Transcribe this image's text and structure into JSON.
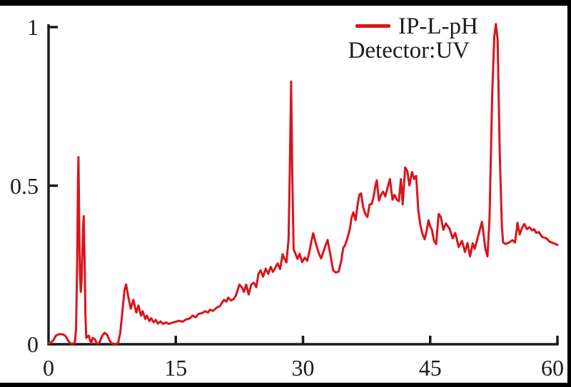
{
  "chart_data": {
    "type": "line",
    "title": "",
    "xlabel": "",
    "ylabel": "",
    "xlim": [
      0,
      60
    ],
    "ylim": [
      0,
      1
    ],
    "x_ticks": [
      0,
      15,
      30,
      45,
      60
    ],
    "y_ticks": [
      0,
      0.5,
      1
    ],
    "grid": false,
    "legend_position": "top-right-inside",
    "annotation": "Detector:UV",
    "axis_color": "#1a1a1a",
    "text_color": "#1c1c1c",
    "background": "#ffffff",
    "frame_color": "#000000",
    "series": [
      {
        "name": "IP-L-pH",
        "color": "#da141b",
        "points": [
          [
            0,
            0.003
          ],
          [
            0.3,
            0.005
          ],
          [
            0.6,
            0.014
          ],
          [
            0.9,
            0.028
          ],
          [
            1.3,
            0.032
          ],
          [
            1.7,
            0.031
          ],
          [
            2.0,
            0.026
          ],
          [
            2.3,
            0.012
          ],
          [
            2.55,
            0.003
          ],
          [
            2.85,
            0.002
          ],
          [
            3.1,
            0.004
          ],
          [
            3.25,
            0.05
          ],
          [
            3.38,
            0.27
          ],
          [
            3.47,
            0.5
          ],
          [
            3.53,
            0.59
          ],
          [
            3.6,
            0.42
          ],
          [
            3.7,
            0.22
          ],
          [
            3.8,
            0.165
          ],
          [
            3.9,
            0.2
          ],
          [
            4.0,
            0.3
          ],
          [
            4.08,
            0.37
          ],
          [
            4.15,
            0.404
          ],
          [
            4.25,
            0.27
          ],
          [
            4.35,
            0.09
          ],
          [
            4.45,
            0.02
          ],
          [
            4.6,
            0.025
          ],
          [
            4.75,
            0.027
          ],
          [
            4.9,
            0.012
          ],
          [
            5.05,
            0.004
          ],
          [
            5.2,
            0.02
          ],
          [
            5.45,
            0.016
          ],
          [
            5.7,
            0.002
          ],
          [
            6.0,
            0.004
          ],
          [
            6.3,
            0.026
          ],
          [
            6.6,
            0.036
          ],
          [
            6.9,
            0.03
          ],
          [
            7.2,
            0.012
          ],
          [
            7.45,
            0.003
          ],
          [
            7.8,
            0.001
          ],
          [
            8.2,
            0.003
          ],
          [
            8.45,
            0.035
          ],
          [
            8.7,
            0.1
          ],
          [
            8.95,
            0.17
          ],
          [
            9.15,
            0.188
          ],
          [
            9.4,
            0.15
          ],
          [
            9.7,
            0.112
          ],
          [
            10.0,
            0.14
          ],
          [
            10.35,
            0.1
          ],
          [
            10.6,
            0.122
          ],
          [
            10.9,
            0.09
          ],
          [
            11.1,
            0.104
          ],
          [
            11.4,
            0.08
          ],
          [
            11.6,
            0.09
          ],
          [
            11.9,
            0.073
          ],
          [
            12.1,
            0.082
          ],
          [
            12.4,
            0.069
          ],
          [
            12.65,
            0.077
          ],
          [
            12.9,
            0.065
          ],
          [
            13.2,
            0.072
          ],
          [
            13.5,
            0.064
          ],
          [
            13.85,
            0.069
          ],
          [
            14.2,
            0.064
          ],
          [
            14.6,
            0.068
          ],
          [
            15.0,
            0.071
          ],
          [
            15.4,
            0.074
          ],
          [
            15.8,
            0.071
          ],
          [
            16.2,
            0.078
          ],
          [
            16.6,
            0.081
          ],
          [
            17.0,
            0.09
          ],
          [
            17.35,
            0.085
          ],
          [
            17.7,
            0.096
          ],
          [
            18.1,
            0.098
          ],
          [
            18.45,
            0.104
          ],
          [
            18.8,
            0.1
          ],
          [
            19.05,
            0.109
          ],
          [
            19.4,
            0.105
          ],
          [
            19.8,
            0.115
          ],
          [
            20.2,
            0.12
          ],
          [
            20.45,
            0.131
          ],
          [
            20.7,
            0.14
          ],
          [
            20.95,
            0.134
          ],
          [
            21.2,
            0.147
          ],
          [
            21.5,
            0.138
          ],
          [
            21.8,
            0.142
          ],
          [
            22.1,
            0.154
          ],
          [
            22.5,
            0.188
          ],
          [
            22.8,
            0.179
          ],
          [
            23.05,
            0.165
          ],
          [
            23.3,
            0.188
          ],
          [
            23.6,
            0.157
          ],
          [
            23.9,
            0.188
          ],
          [
            24.2,
            0.194
          ],
          [
            24.5,
            0.18
          ],
          [
            24.75,
            0.222
          ],
          [
            25.0,
            0.233
          ],
          [
            25.3,
            0.213
          ],
          [
            25.6,
            0.238
          ],
          [
            25.9,
            0.222
          ],
          [
            26.2,
            0.244
          ],
          [
            26.45,
            0.228
          ],
          [
            26.7,
            0.239
          ],
          [
            27.0,
            0.255
          ],
          [
            27.3,
            0.237
          ],
          [
            27.6,
            0.284
          ],
          [
            27.8,
            0.269
          ],
          [
            28.05,
            0.258
          ],
          [
            28.3,
            0.33
          ],
          [
            28.45,
            0.56
          ],
          [
            28.6,
            0.828
          ],
          [
            28.75,
            0.52
          ],
          [
            28.9,
            0.3
          ],
          [
            29.1,
            0.286
          ],
          [
            29.35,
            0.269
          ],
          [
            29.6,
            0.285
          ],
          [
            29.9,
            0.259
          ],
          [
            30.2,
            0.273
          ],
          [
            30.5,
            0.263
          ],
          [
            30.75,
            0.291
          ],
          [
            31.0,
            0.326
          ],
          [
            31.2,
            0.35
          ],
          [
            31.45,
            0.324
          ],
          [
            31.65,
            0.306
          ],
          [
            31.9,
            0.284
          ],
          [
            32.15,
            0.271
          ],
          [
            32.4,
            0.291
          ],
          [
            32.65,
            0.311
          ],
          [
            32.9,
            0.329
          ],
          [
            33.1,
            0.301
          ],
          [
            33.3,
            0.271
          ],
          [
            33.55,
            0.233
          ],
          [
            33.85,
            0.226
          ],
          [
            34.2,
            0.229
          ],
          [
            34.5,
            0.261
          ],
          [
            34.75,
            0.304
          ],
          [
            34.95,
            0.311
          ],
          [
            35.2,
            0.331
          ],
          [
            35.5,
            0.361
          ],
          [
            35.75,
            0.401
          ],
          [
            35.95,
            0.416
          ],
          [
            36.2,
            0.391
          ],
          [
            36.45,
            0.441
          ],
          [
            36.65,
            0.471
          ],
          [
            36.85,
            0.476
          ],
          [
            37.1,
            0.431
          ],
          [
            37.35,
            0.411
          ],
          [
            37.6,
            0.401
          ],
          [
            37.85,
            0.441
          ],
          [
            38.1,
            0.442
          ],
          [
            38.3,
            0.461
          ],
          [
            38.55,
            0.501
          ],
          [
            38.7,
            0.517
          ],
          [
            38.95,
            0.453
          ],
          [
            39.2,
            0.471
          ],
          [
            39.45,
            0.481
          ],
          [
            39.7,
            0.466
          ],
          [
            39.95,
            0.491
          ],
          [
            40.25,
            0.521
          ],
          [
            40.55,
            0.456
          ],
          [
            40.8,
            0.471
          ],
          [
            41.05,
            0.456
          ],
          [
            41.3,
            0.451
          ],
          [
            41.55,
            0.521
          ],
          [
            41.75,
            0.441
          ],
          [
            42.05,
            0.557
          ],
          [
            42.3,
            0.546
          ],
          [
            42.55,
            0.501
          ],
          [
            42.85,
            0.543
          ],
          [
            43.1,
            0.521
          ],
          [
            43.35,
            0.531
          ],
          [
            43.6,
            0.421
          ],
          [
            43.85,
            0.374
          ],
          [
            44.1,
            0.346
          ],
          [
            44.35,
            0.331
          ],
          [
            44.6,
            0.361
          ],
          [
            44.8,
            0.391
          ],
          [
            45.0,
            0.371
          ],
          [
            45.2,
            0.361
          ],
          [
            45.45,
            0.326
          ],
          [
            45.7,
            0.316
          ],
          [
            46.0,
            0.411
          ],
          [
            46.25,
            0.401
          ],
          [
            46.55,
            0.361
          ],
          [
            46.85,
            0.381
          ],
          [
            47.1,
            0.371
          ],
          [
            47.3,
            0.363
          ],
          [
            47.65,
            0.334
          ],
          [
            47.95,
            0.351
          ],
          [
            48.35,
            0.307
          ],
          [
            48.75,
            0.326
          ],
          [
            49.1,
            0.291
          ],
          [
            49.4,
            0.319
          ],
          [
            49.7,
            0.277
          ],
          [
            50.0,
            0.318
          ],
          [
            50.25,
            0.301
          ],
          [
            50.65,
            0.341
          ],
          [
            51.1,
            0.386
          ],
          [
            51.3,
            0.346
          ],
          [
            51.5,
            0.301
          ],
          [
            51.75,
            0.277
          ],
          [
            52.0,
            0.4
          ],
          [
            52.3,
            0.78
          ],
          [
            52.55,
            0.97
          ],
          [
            52.75,
            1.01
          ],
          [
            52.95,
            0.96
          ],
          [
            53.2,
            0.6
          ],
          [
            53.45,
            0.37
          ],
          [
            53.6,
            0.321
          ],
          [
            53.9,
            0.316
          ],
          [
            54.3,
            0.321
          ],
          [
            54.7,
            0.328
          ],
          [
            55.0,
            0.321
          ],
          [
            55.3,
            0.383
          ],
          [
            55.55,
            0.346
          ],
          [
            55.85,
            0.368
          ],
          [
            56.1,
            0.379
          ],
          [
            56.4,
            0.363
          ],
          [
            56.7,
            0.369
          ],
          [
            57.0,
            0.359
          ],
          [
            57.25,
            0.363
          ],
          [
            57.5,
            0.351
          ],
          [
            57.8,
            0.354
          ],
          [
            58.2,
            0.338
          ],
          [
            58.7,
            0.334
          ],
          [
            59.1,
            0.323
          ],
          [
            59.7,
            0.317
          ],
          [
            60.0,
            0.313
          ]
        ]
      }
    ]
  }
}
